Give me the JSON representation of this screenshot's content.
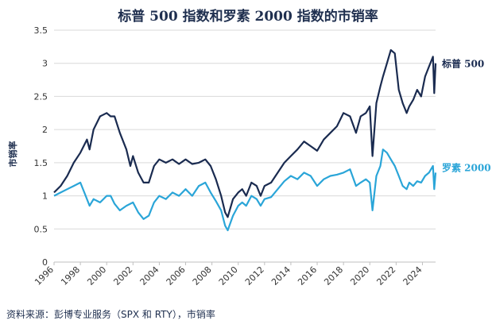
{
  "title": "标普 500 指数和罗素 2000 指数的市销率",
  "source": "资料来源：彭博专业服务（SPX 和 RTY），市销率",
  "colors": {
    "sp500": "#1a2b50",
    "russell": "#2aa5d8",
    "grid": "#d9d9d9",
    "axis": "#bfbfbf"
  },
  "chart_data": {
    "type": "line",
    "title": "标普 500 指数和罗素 2000 指数的市销率",
    "xlabel": "",
    "ylabel": "市销率",
    "xlim": [
      1996,
      2025
    ],
    "ylim": [
      0,
      3.5
    ],
    "yticks": [
      "0",
      "0.5",
      "1",
      "1.5",
      "2",
      "2.5",
      "3",
      "3.5"
    ],
    "xticks": [
      "1996",
      "1998",
      "2000",
      "2002",
      "2004",
      "2006",
      "2008",
      "2010",
      "2012",
      "2014",
      "2016",
      "2018",
      "2020",
      "2022",
      "2024"
    ],
    "grid": "horizontal",
    "legend": "inline-right",
    "series": [
      {
        "name": "标普 500",
        "color": "#1a2b50",
        "x": [
          1996.0,
          1996.5,
          1997.0,
          1997.5,
          1998.0,
          1998.5,
          1998.7,
          1999.0,
          1999.5,
          2000.0,
          2000.3,
          2000.6,
          2001.0,
          2001.5,
          2001.8,
          2002.0,
          2002.4,
          2002.8,
          2003.2,
          2003.6,
          2004.0,
          2004.5,
          2005.0,
          2005.5,
          2006.0,
          2006.5,
          2007.0,
          2007.5,
          2007.9,
          2008.3,
          2008.7,
          2009.0,
          2009.2,
          2009.6,
          2010.0,
          2010.3,
          2010.6,
          2011.0,
          2011.4,
          2011.7,
          2012.0,
          2012.5,
          2013.0,
          2013.5,
          2014.0,
          2014.5,
          2015.0,
          2015.5,
          2016.0,
          2016.5,
          2017.0,
          2017.5,
          2018.0,
          2018.5,
          2018.95,
          2019.3,
          2019.7,
          2020.0,
          2020.2,
          2020.5,
          2020.8,
          2021.0,
          2021.3,
          2021.6,
          2021.9,
          2022.2,
          2022.5,
          2022.8,
          2023.0,
          2023.3,
          2023.6,
          2023.9,
          2024.2,
          2024.5,
          2024.8,
          2024.9,
          2025.0
        ],
        "y": [
          1.05,
          1.15,
          1.3,
          1.5,
          1.65,
          1.85,
          1.7,
          2.0,
          2.2,
          2.25,
          2.2,
          2.2,
          1.95,
          1.7,
          1.45,
          1.6,
          1.35,
          1.2,
          1.2,
          1.45,
          1.55,
          1.5,
          1.55,
          1.48,
          1.55,
          1.48,
          1.5,
          1.55,
          1.45,
          1.25,
          1.0,
          0.75,
          0.68,
          0.95,
          1.05,
          1.1,
          1.0,
          1.2,
          1.15,
          1.0,
          1.15,
          1.2,
          1.35,
          1.5,
          1.6,
          1.7,
          1.82,
          1.75,
          1.68,
          1.85,
          1.95,
          2.05,
          2.25,
          2.2,
          1.95,
          2.2,
          2.25,
          2.35,
          1.6,
          2.4,
          2.65,
          2.8,
          3.0,
          3.2,
          3.15,
          2.6,
          2.4,
          2.25,
          2.35,
          2.45,
          2.6,
          2.5,
          2.8,
          2.95,
          3.1,
          2.55,
          3.0
        ]
      },
      {
        "name": "罗素 2000",
        "color": "#2aa5d8",
        "x": [
          1996.0,
          1996.5,
          1997.0,
          1997.5,
          1998.0,
          1998.3,
          1998.7,
          1999.0,
          1999.5,
          2000.0,
          2000.3,
          2000.6,
          2001.0,
          2001.5,
          2002.0,
          2002.4,
          2002.8,
          2003.2,
          2003.6,
          2004.0,
          2004.5,
          2005.0,
          2005.5,
          2006.0,
          2006.5,
          2007.0,
          2007.5,
          2007.9,
          2008.3,
          2008.7,
          2009.0,
          2009.2,
          2009.6,
          2010.0,
          2010.3,
          2010.6,
          2011.0,
          2011.4,
          2011.7,
          2012.0,
          2012.5,
          2013.0,
          2013.5,
          2014.0,
          2014.5,
          2015.0,
          2015.5,
          2016.0,
          2016.5,
          2017.0,
          2017.5,
          2018.0,
          2018.5,
          2018.95,
          2019.3,
          2019.7,
          2020.0,
          2020.2,
          2020.5,
          2020.8,
          2021.0,
          2021.3,
          2021.6,
          2021.9,
          2022.2,
          2022.5,
          2022.8,
          2023.0,
          2023.3,
          2023.6,
          2023.9,
          2024.2,
          2024.5,
          2024.8,
          2024.9,
          2025.0
        ],
        "y": [
          1.0,
          1.05,
          1.1,
          1.15,
          1.2,
          1.05,
          0.85,
          0.95,
          0.9,
          1.0,
          1.0,
          0.88,
          0.78,
          0.85,
          0.9,
          0.75,
          0.65,
          0.7,
          0.9,
          1.0,
          0.95,
          1.05,
          1.0,
          1.1,
          1.0,
          1.15,
          1.2,
          1.05,
          0.92,
          0.78,
          0.55,
          0.48,
          0.7,
          0.85,
          0.9,
          0.85,
          1.0,
          0.95,
          0.85,
          0.95,
          0.98,
          1.1,
          1.22,
          1.3,
          1.25,
          1.35,
          1.3,
          1.15,
          1.25,
          1.3,
          1.32,
          1.35,
          1.4,
          1.15,
          1.2,
          1.25,
          1.2,
          0.78,
          1.3,
          1.45,
          1.7,
          1.65,
          1.55,
          1.45,
          1.3,
          1.15,
          1.1,
          1.2,
          1.15,
          1.22,
          1.2,
          1.3,
          1.35,
          1.45,
          1.1,
          1.35
        ]
      }
    ]
  }
}
